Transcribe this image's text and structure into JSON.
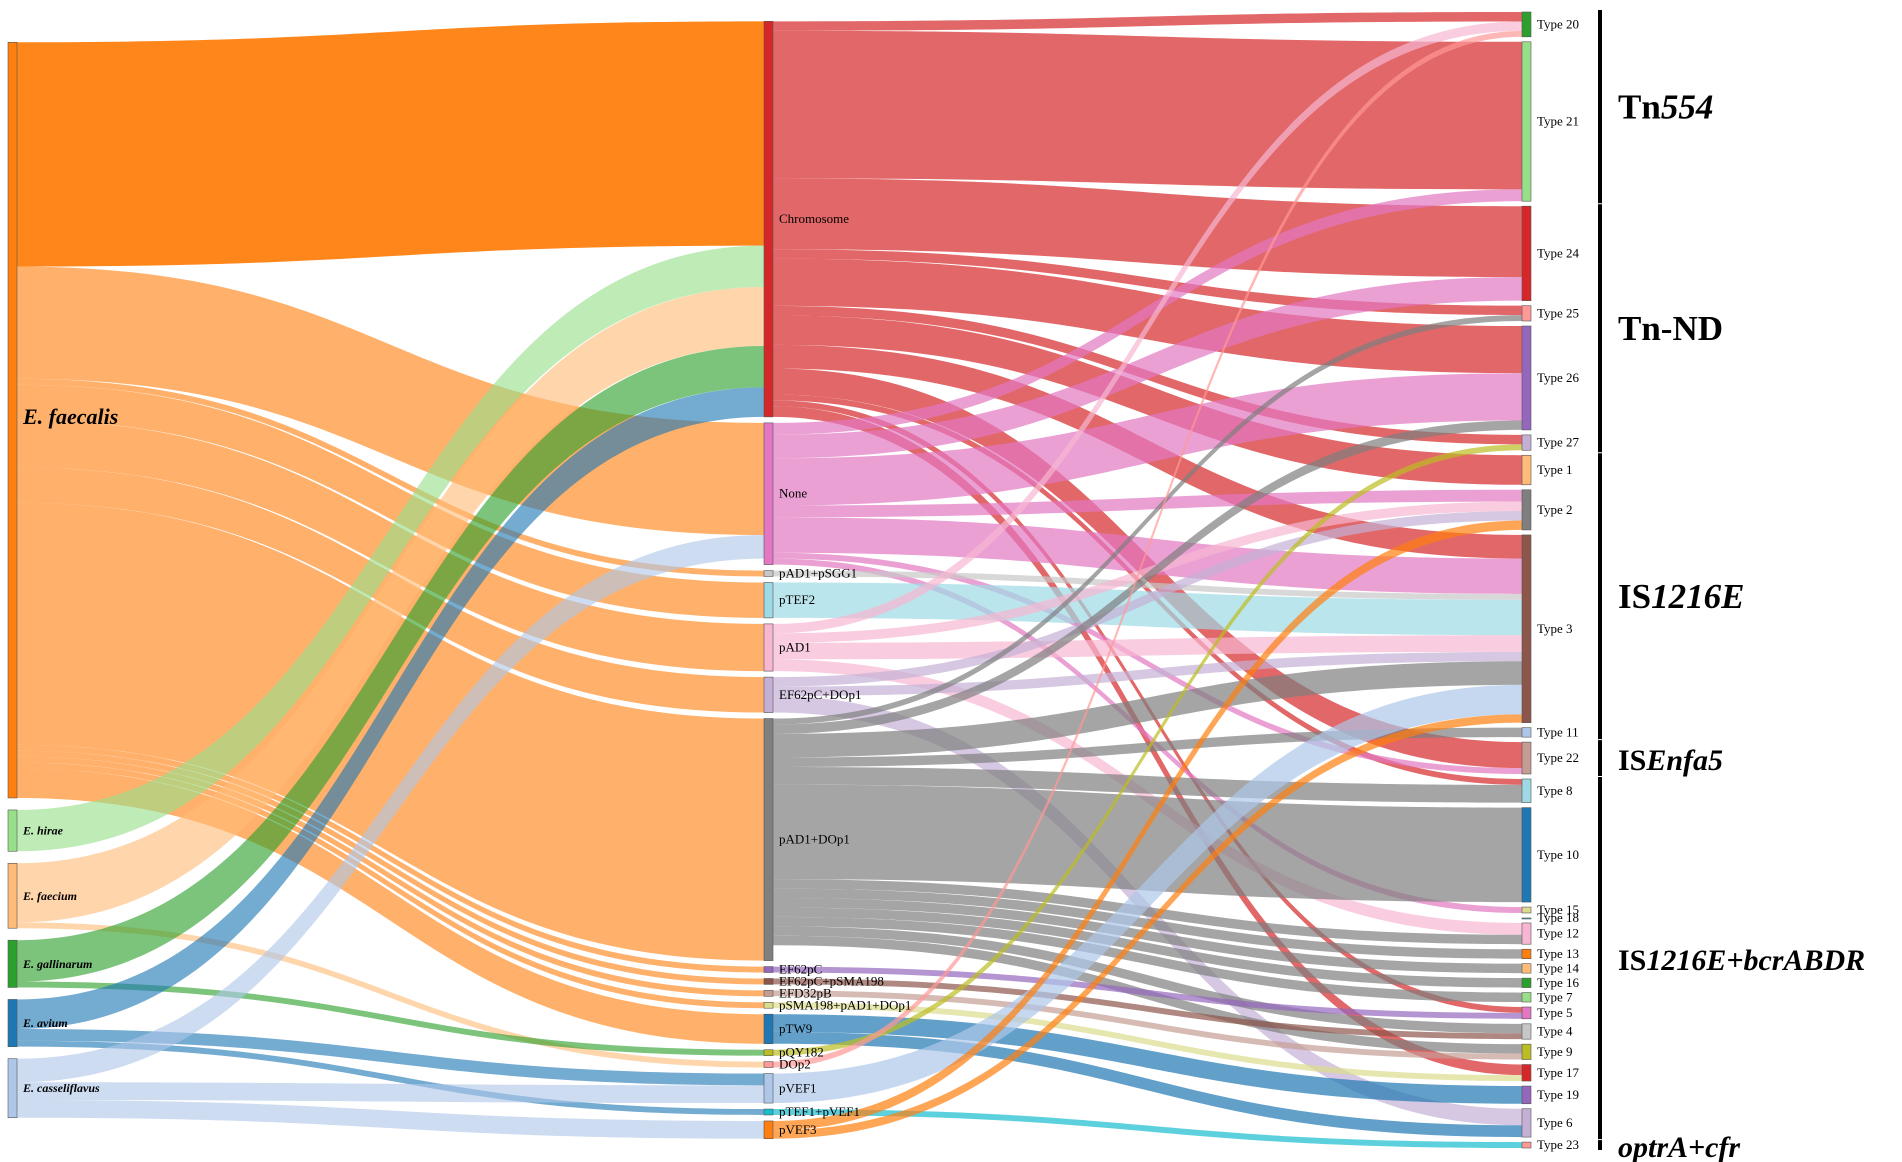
{
  "sources": [
    {
      "id": "efaecalis",
      "label": "E. faecalis",
      "color": "#FF7F0E"
    },
    {
      "id": "ehirae",
      "label": "E. hirae",
      "color": "#98DF8A"
    },
    {
      "id": "efaecium",
      "label": "E. faecium",
      "color": "#FFBB78"
    },
    {
      "id": "egallinarum",
      "label": "E. gallinarum",
      "color": "#2CA02C"
    },
    {
      "id": "eavium",
      "label": "E. avium",
      "color": "#1F77B4"
    },
    {
      "id": "ecasseliflavus",
      "label": "E. casseliflavus",
      "color": "#AEC7E8"
    }
  ],
  "middle": [
    {
      "id": "chromosome",
      "label": "Chromosome",
      "color": "#D62728"
    },
    {
      "id": "none",
      "label": "None",
      "color": "#E377C2"
    },
    {
      "id": "pad1psgg1",
      "label": "pAD1+pSGG1",
      "color": "#C7C7C7"
    },
    {
      "id": "ptef2",
      "label": "pTEF2",
      "color": "#9EDAE5"
    },
    {
      "id": "pad1",
      "label": "pAD1",
      "color": "#F7B6D2"
    },
    {
      "id": "ef62pcdop1",
      "label": "EF62pC+DOp1",
      "color": "#C5B0D5"
    },
    {
      "id": "pad1dop1",
      "label": "pAD1+DOp1",
      "color": "#7F7F7F"
    },
    {
      "id": "ef62pc",
      "label": "EF62pC",
      "color": "#9467BD"
    },
    {
      "id": "ef62pcpsma198",
      "label": "EF62pC+pSMA198",
      "color": "#8C564B"
    },
    {
      "id": "efd32pb",
      "label": "EFD32pB",
      "color": "#C49C94"
    },
    {
      "id": "psma198pad1dop1",
      "label": "pSMA198+pAD1+DOp1",
      "color": "#DBDB8D"
    },
    {
      "id": "ptw9",
      "label": "pTW9",
      "color": "#1F77B4"
    },
    {
      "id": "pqy182",
      "label": "pQY182",
      "color": "#BCBD22"
    },
    {
      "id": "dop2",
      "label": "DOp2",
      "color": "#FF9896"
    },
    {
      "id": "pvef1",
      "label": "pVEF1",
      "color": "#AEC7E8"
    },
    {
      "id": "ptef1pvef1",
      "label": "pTEF1+pVEF1",
      "color": "#17BECF"
    },
    {
      "id": "pvef3",
      "label": "pVEF3",
      "color": "#FF7F0E"
    }
  ],
  "targets": [
    {
      "id": "t20",
      "label": "Type 20",
      "color": "#2CA02C"
    },
    {
      "id": "t21",
      "label": "Type 21",
      "color": "#98DF8A"
    },
    {
      "id": "t24",
      "label": "Type 24",
      "color": "#D62728"
    },
    {
      "id": "t25",
      "label": "Type 25",
      "color": "#FF9896"
    },
    {
      "id": "t26",
      "label": "Type 26",
      "color": "#9467BD"
    },
    {
      "id": "t27",
      "label": "Type 27",
      "color": "#C5B0D5"
    },
    {
      "id": "t1",
      "label": "Type 1",
      "color": "#FFBB78"
    },
    {
      "id": "t2",
      "label": "Type 2",
      "color": "#7F7F7F"
    },
    {
      "id": "t3",
      "label": "Type 3",
      "color": "#8C564B"
    },
    {
      "id": "t11",
      "label": "Type 11",
      "color": "#AEC7E8"
    },
    {
      "id": "t22",
      "label": "Type 22",
      "color": "#C49C94"
    },
    {
      "id": "t8",
      "label": "Type 8",
      "color": "#9EDAE5"
    },
    {
      "id": "t10",
      "label": "Type 10",
      "color": "#1F77B4"
    },
    {
      "id": "t15",
      "label": "Type 15",
      "color": "#DBDB8D"
    },
    {
      "id": "t18",
      "label": "Type 18",
      "color": "#17BECF"
    },
    {
      "id": "t12",
      "label": "Type 12",
      "color": "#F7B6D2"
    },
    {
      "id": "t13",
      "label": "Type 13",
      "color": "#FF7F0E"
    },
    {
      "id": "t14",
      "label": "Type 14",
      "color": "#FFBB78"
    },
    {
      "id": "t16",
      "label": "Type 16",
      "color": "#2CA02C"
    },
    {
      "id": "t7",
      "label": "Type 7",
      "color": "#98DF8A"
    },
    {
      "id": "t5",
      "label": "Type 5",
      "color": "#E377C2"
    },
    {
      "id": "t4",
      "label": "Type 4",
      "color": "#C7C7C7"
    },
    {
      "id": "t9",
      "label": "Type 9",
      "color": "#BCBD22"
    },
    {
      "id": "t17",
      "label": "Type 17",
      "color": "#D62728"
    },
    {
      "id": "t19",
      "label": "Type 19",
      "color": "#9467BD"
    },
    {
      "id": "t6",
      "label": "Type 6",
      "color": "#C5B0D5"
    },
    {
      "id": "t23",
      "label": "Type 23",
      "color": "#FF9896"
    }
  ],
  "flows": [
    {
      "from": "efaecalis",
      "to": "chromosome",
      "value": 190
    },
    {
      "from": "efaecalis",
      "to": "none",
      "value": 95
    },
    {
      "from": "efaecalis",
      "to": "pad1psgg1",
      "value": 5
    },
    {
      "from": "efaecalis",
      "to": "ptef2",
      "value": 30
    },
    {
      "from": "efaecalis",
      "to": "pad1",
      "value": 40
    },
    {
      "from": "efaecalis",
      "to": "ef62pcdop1",
      "value": 30
    },
    {
      "from": "efaecalis",
      "to": "pad1dop1",
      "value": 205
    },
    {
      "from": "efaecalis",
      "to": "ef62pc",
      "value": 5
    },
    {
      "from": "efaecalis",
      "to": "ef62pcpsma198",
      "value": 5
    },
    {
      "from": "efaecalis",
      "to": "efd32pb",
      "value": 5
    },
    {
      "from": "efaecalis",
      "to": "psma198pad1dop1",
      "value": 5
    },
    {
      "from": "efaecalis",
      "to": "ptw9",
      "value": 25
    },
    {
      "from": "ehirae",
      "to": "chromosome",
      "value": 35
    },
    {
      "from": "efaecium",
      "to": "chromosome",
      "value": 50
    },
    {
      "from": "efaecium",
      "to": "dop2",
      "value": 5
    },
    {
      "from": "egallinarum",
      "to": "chromosome",
      "value": 35
    },
    {
      "from": "egallinarum",
      "to": "pqy182",
      "value": 5
    },
    {
      "from": "eavium",
      "to": "chromosome",
      "value": 25
    },
    {
      "from": "eavium",
      "to": "pvef1",
      "value": 10
    },
    {
      "from": "eavium",
      "to": "ptef1pvef1",
      "value": 5
    },
    {
      "from": "ecasseliflavus",
      "to": "none",
      "value": 20
    },
    {
      "from": "ecasseliflavus",
      "to": "pvef1",
      "value": 15
    },
    {
      "from": "ecasseliflavus",
      "to": "pvef3",
      "value": 15
    },
    {
      "from": "chromosome",
      "to": "t20",
      "value": 8
    },
    {
      "from": "chromosome",
      "to": "t21",
      "value": 125
    },
    {
      "from": "chromosome",
      "to": "t24",
      "value": 60
    },
    {
      "from": "chromosome",
      "to": "t25",
      "value": 8
    },
    {
      "from": "chromosome",
      "to": "t26",
      "value": 40
    },
    {
      "from": "chromosome",
      "to": "t27",
      "value": 8
    },
    {
      "from": "chromosome",
      "to": "t1",
      "value": 25
    },
    {
      "from": "chromosome",
      "to": "t3",
      "value": 20
    },
    {
      "from": "chromosome",
      "to": "t22",
      "value": 22
    },
    {
      "from": "chromosome",
      "to": "t8",
      "value": 5
    },
    {
      "from": "chromosome",
      "to": "t5",
      "value": 5
    },
    {
      "from": "chromosome",
      "to": "t17",
      "value": 9
    },
    {
      "from": "none",
      "to": "t21",
      "value": 10
    },
    {
      "from": "none",
      "to": "t24",
      "value": 20
    },
    {
      "from": "none",
      "to": "t26",
      "value": 40
    },
    {
      "from": "none",
      "to": "t2",
      "value": 10
    },
    {
      "from": "none",
      "to": "t3",
      "value": 30
    },
    {
      "from": "none",
      "to": "t22",
      "value": 5
    },
    {
      "from": "none",
      "to": "t15",
      "value": 5
    },
    {
      "from": "pad1psgg1",
      "to": "t3",
      "value": 5
    },
    {
      "from": "ptef2",
      "to": "t3",
      "value": 30
    },
    {
      "from": "pad1",
      "to": "t20",
      "value": 8
    },
    {
      "from": "pad1",
      "to": "t2",
      "value": 8
    },
    {
      "from": "pad1",
      "to": "t3",
      "value": 14
    },
    {
      "from": "pad1",
      "to": "t12",
      "value": 10
    },
    {
      "from": "ef62pcdop1",
      "to": "t2",
      "value": 8
    },
    {
      "from": "ef62pcdop1",
      "to": "t3",
      "value": 8
    },
    {
      "from": "ef62pcdop1",
      "to": "t6",
      "value": 14
    },
    {
      "from": "pad1dop1",
      "to": "t25",
      "value": 5
    },
    {
      "from": "pad1dop1",
      "to": "t26",
      "value": 8
    },
    {
      "from": "pad1dop1",
      "to": "t3",
      "value": 20
    },
    {
      "from": "pad1dop1",
      "to": "t11",
      "value": 8
    },
    {
      "from": "pad1dop1",
      "to": "t8",
      "value": 15
    },
    {
      "from": "pad1dop1",
      "to": "t10",
      "value": 80
    },
    {
      "from": "pad1dop1",
      "to": "t12",
      "value": 8
    },
    {
      "from": "pad1dop1",
      "to": "t13",
      "value": 8
    },
    {
      "from": "pad1dop1",
      "to": "t14",
      "value": 8
    },
    {
      "from": "pad1dop1",
      "to": "t16",
      "value": 8
    },
    {
      "from": "pad1dop1",
      "to": "t7",
      "value": 8
    },
    {
      "from": "pad1dop1",
      "to": "t4",
      "value": 8
    },
    {
      "from": "pad1dop1",
      "to": "t9",
      "value": 8
    },
    {
      "from": "ef62pc",
      "to": "t5",
      "value": 5
    },
    {
      "from": "ef62pcpsma198",
      "to": "t4",
      "value": 5
    },
    {
      "from": "efd32pb",
      "to": "t9",
      "value": 5
    },
    {
      "from": "psma198pad1dop1",
      "to": "t17",
      "value": 5
    },
    {
      "from": "ptw9",
      "to": "t19",
      "value": 15
    },
    {
      "from": "ptw9",
      "to": "t6",
      "value": 10
    },
    {
      "from": "pqy182",
      "to": "t27",
      "value": 5
    },
    {
      "from": "dop2",
      "to": "t20",
      "value": 5
    },
    {
      "from": "pvef1",
      "to": "t3",
      "value": 25
    },
    {
      "from": "ptef1pvef1",
      "to": "t23",
      "value": 5
    },
    {
      "from": "pvef3",
      "to": "t2",
      "value": 8
    },
    {
      "from": "pvef3",
      "to": "t3",
      "value": 7
    }
  ],
  "groups": [
    {
      "id": "tn554",
      "prefix": "Tn",
      "italic": "554",
      "suffix": "",
      "from": "t20",
      "to": "t21"
    },
    {
      "id": "tnnd",
      "prefix": "Tn-ND",
      "italic": "",
      "suffix": "",
      "from": "t24",
      "to": "t27"
    },
    {
      "id": "is1216e",
      "prefix": "IS",
      "italic": "1216E",
      "suffix": "",
      "from": "t1",
      "to": "t11"
    },
    {
      "id": "isenfa5",
      "prefix": "IS",
      "italic": "Enfa5",
      "suffix": "",
      "from": "t22",
      "to": "t22"
    },
    {
      "id": "is1216ebcr",
      "prefix": "IS",
      "italic": "1216E+bcrABDR",
      "suffix": "",
      "from": "t8",
      "to": "t6"
    },
    {
      "id": "optracfr",
      "prefix": "",
      "italic": "optrA+cfr",
      "suffix": "",
      "from": "t23",
      "to": "t23"
    }
  ]
}
